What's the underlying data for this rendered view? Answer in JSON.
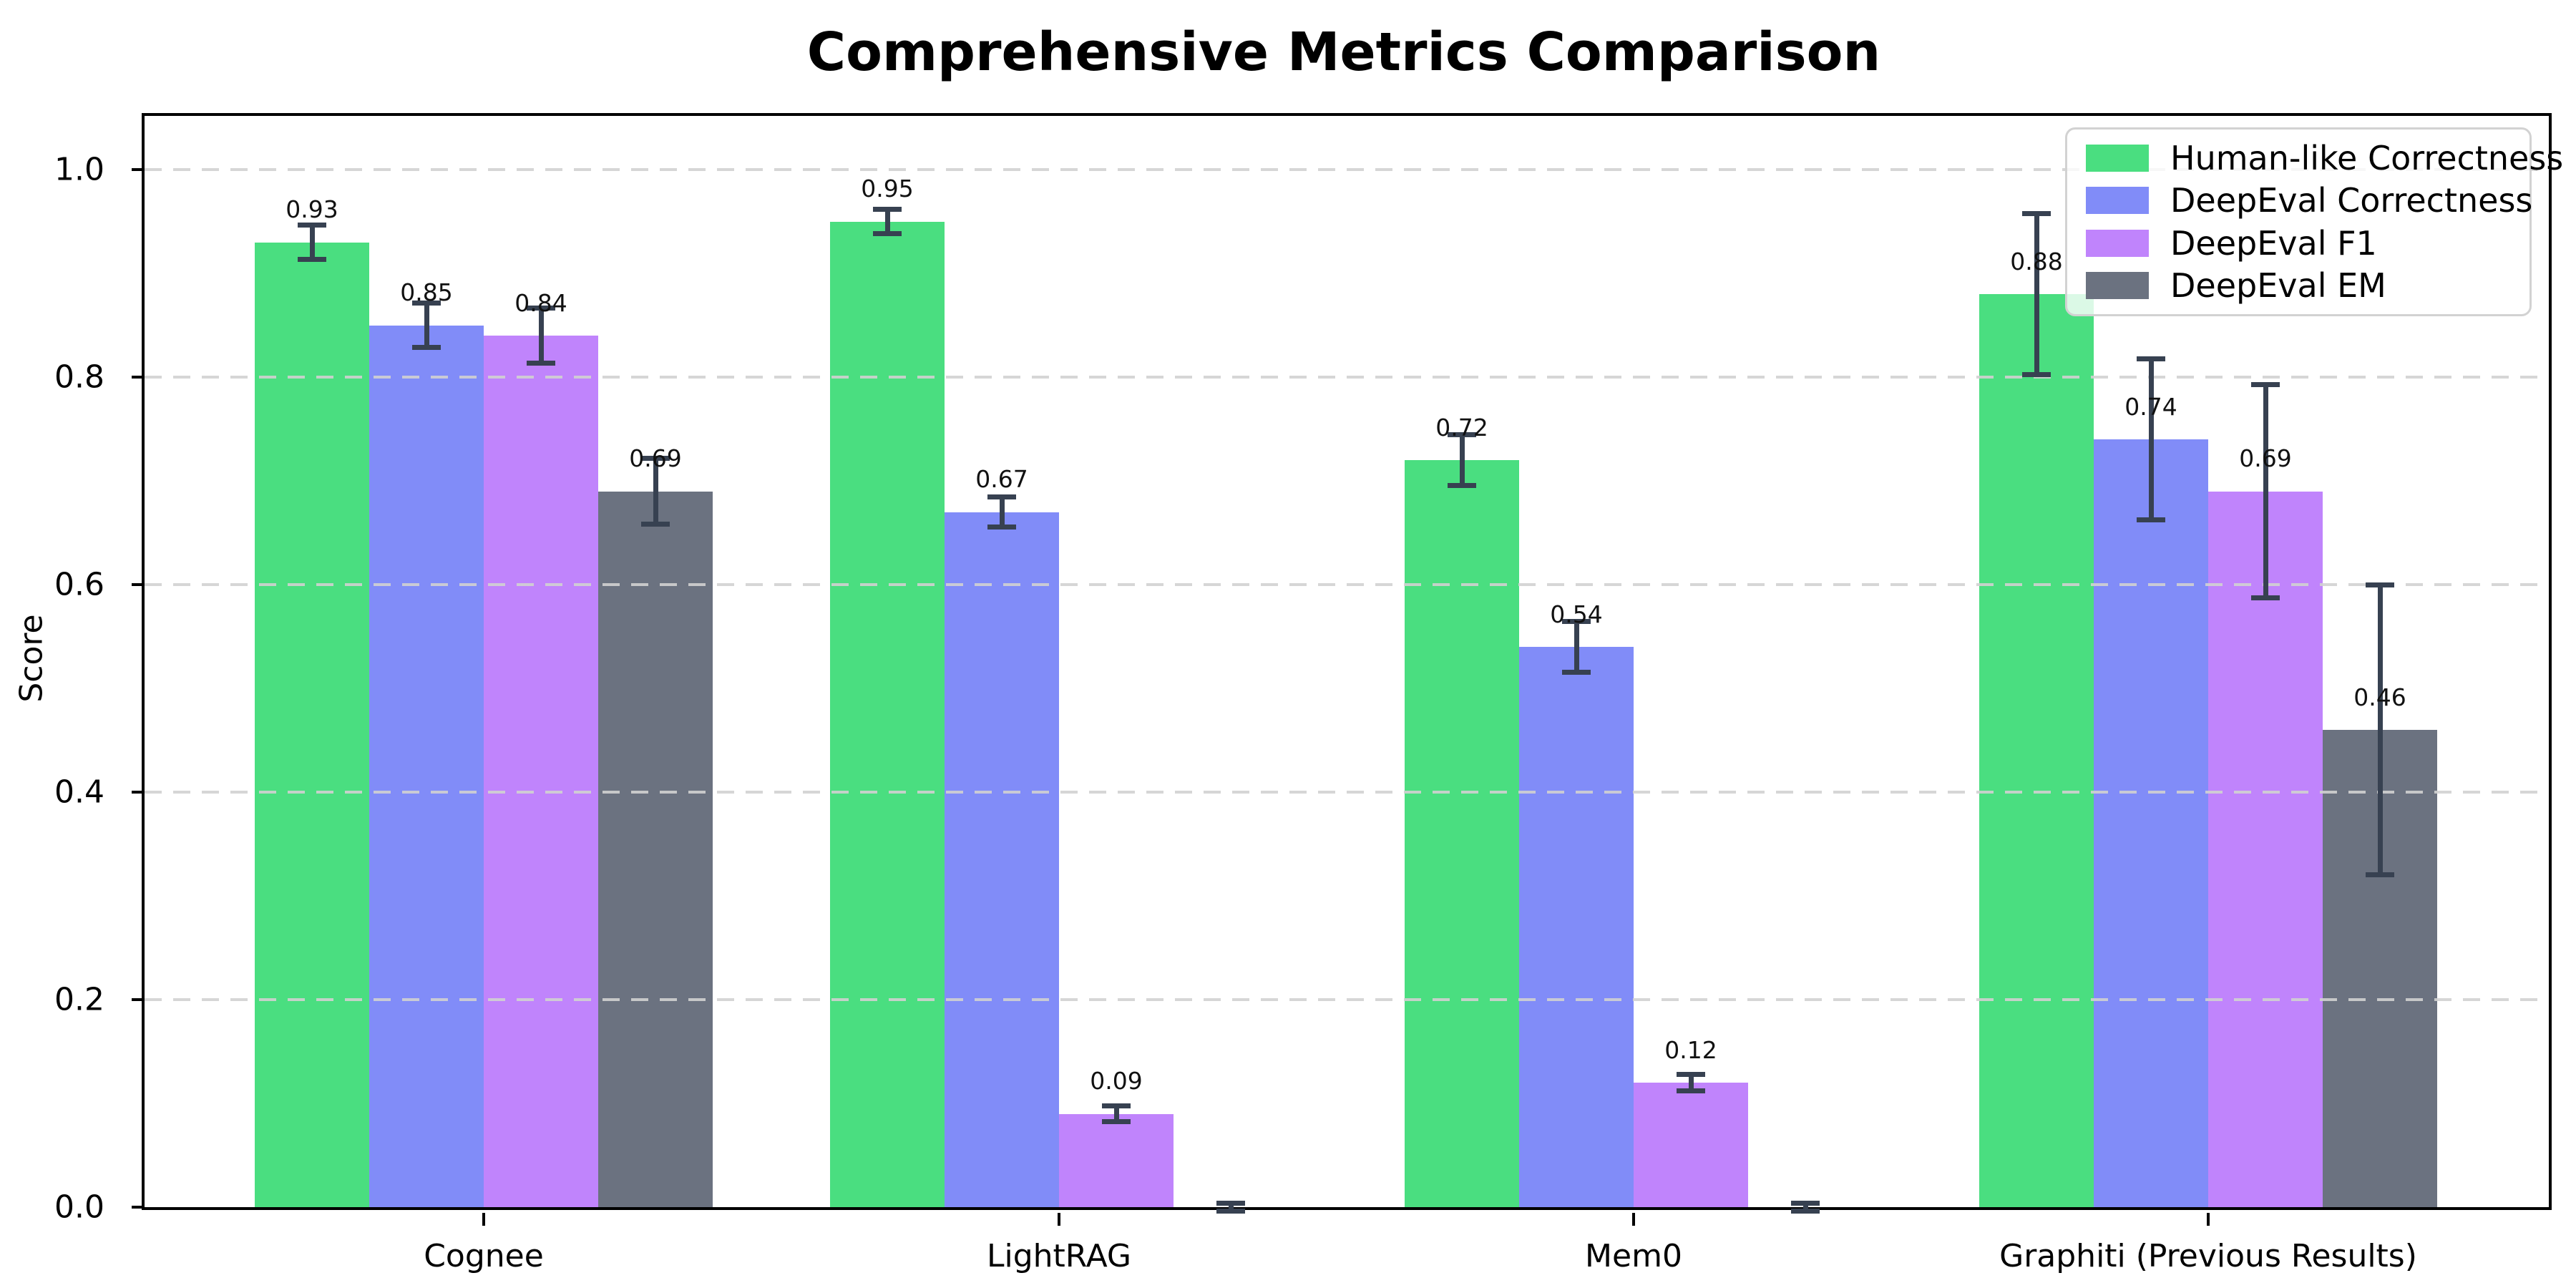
{
  "title": "Comprehensive Metrics Comparison",
  "chart_data": {
    "type": "bar",
    "title": "Comprehensive Metrics Comparison",
    "ylabel": "Score",
    "xlabel": "",
    "ylim": [
      0.0,
      1.05
    ],
    "grid": "horizontal dashed",
    "legend_position": "upper right",
    "categories": [
      "Cognee",
      "LightRAG",
      "Mem0",
      "Graphiti (Previous Results)"
    ],
    "yticks": [
      {
        "value": 0.0,
        "label": "0.0"
      },
      {
        "value": 0.2,
        "label": "0.2"
      },
      {
        "value": 0.4,
        "label": "0.4"
      },
      {
        "value": 0.6,
        "label": "0.6"
      },
      {
        "value": 0.8,
        "label": "0.8"
      },
      {
        "value": 1.0,
        "label": "1.0"
      }
    ],
    "series": [
      {
        "name": "Human-like Correctness",
        "color": "#4ade80",
        "values": [
          0.93,
          0.95,
          0.72,
          0.88
        ],
        "errors": [
          0.017,
          0.012,
          0.025,
          0.078
        ],
        "labels": [
          "0.93",
          "0.95",
          "0.72",
          "0.88"
        ]
      },
      {
        "name": "DeepEval Correctness",
        "color": "#818cf8",
        "values": [
          0.85,
          0.67,
          0.54,
          0.74
        ],
        "errors": [
          0.022,
          0.015,
          0.025,
          0.078
        ],
        "labels": [
          "0.85",
          "0.67",
          "0.54",
          "0.74"
        ]
      },
      {
        "name": "DeepEval F1",
        "color": "#c084fc",
        "values": [
          0.84,
          0.09,
          0.12,
          0.69
        ],
        "errors": [
          0.027,
          0.008,
          0.008,
          0.103
        ],
        "labels": [
          "0.84",
          "0.09",
          "0.12",
          "0.69"
        ]
      },
      {
        "name": "DeepEval EM",
        "color": "#6b7280",
        "values": [
          0.69,
          0.0,
          0.0,
          0.46
        ],
        "errors": [
          0.032,
          0.004,
          0.004,
          0.14
        ],
        "labels": [
          "0.69",
          null,
          null,
          "0.46"
        ]
      }
    ],
    "error_bar_color": "#374151",
    "gridline_color": "#d1d1d1"
  }
}
